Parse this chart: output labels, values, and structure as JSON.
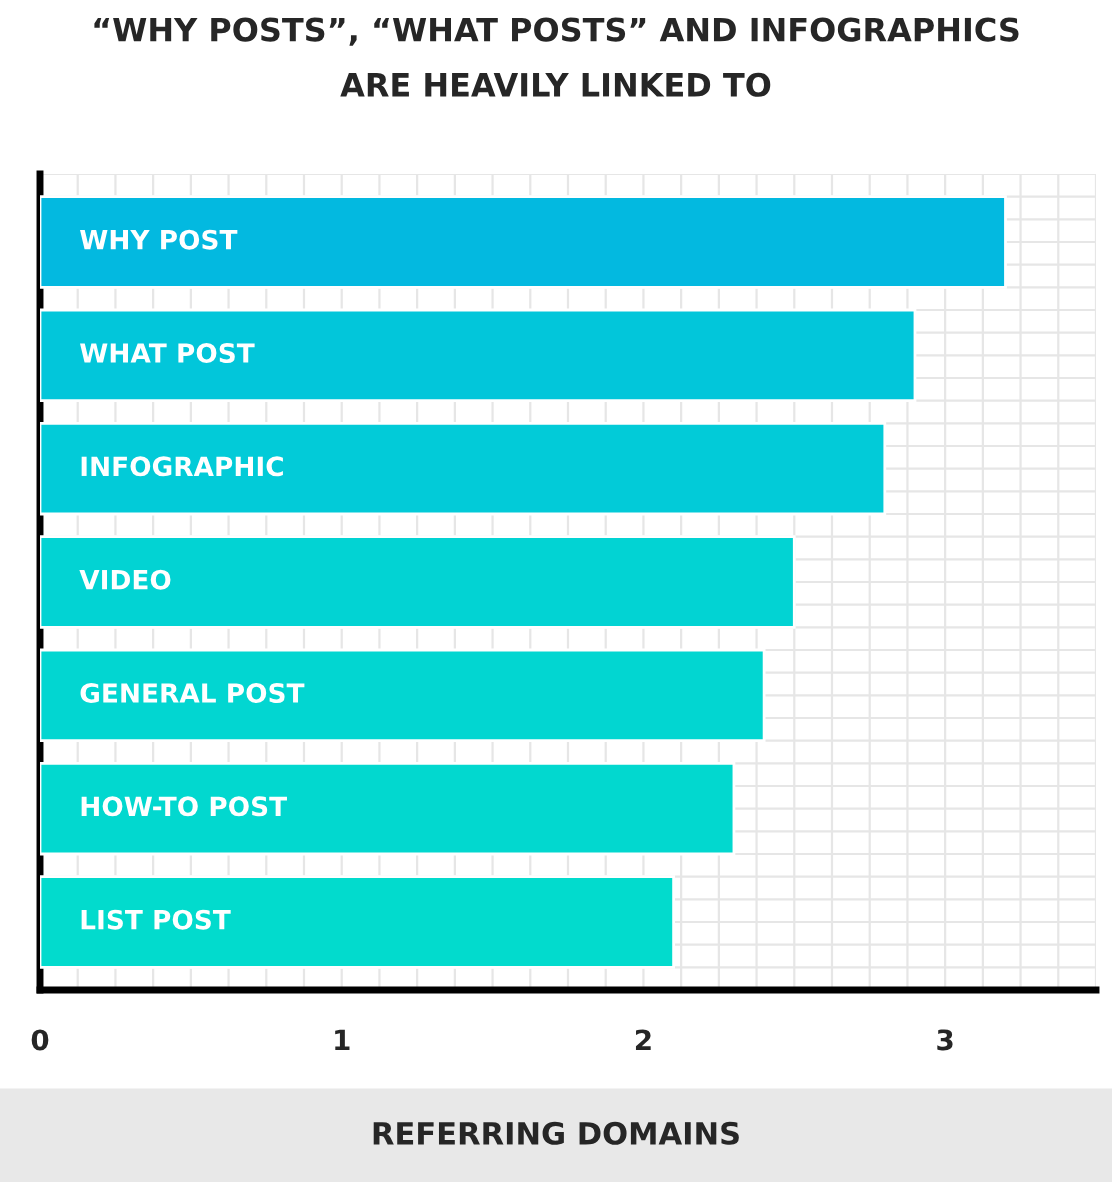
{
  "chart_data": {
    "type": "bar",
    "orientation": "horizontal",
    "title": "“WHY POSTS”, “WHAT POSTS” AND INFOGRAPHICS\nARE HEAVILY LINKED TO",
    "xlabel": "REFERRING DOMAINS",
    "categories": [
      "WHY POST",
      "WHAT POST",
      "INFOGRAPHIC",
      "VIDEO",
      "GENERAL POST",
      "HOW-TO POST",
      "LIST POST"
    ],
    "values": [
      3.2,
      2.9,
      2.8,
      2.5,
      2.4,
      2.3,
      2.1
    ],
    "colors": [
      "#03b9e0",
      "#02c6da",
      "#02cbd8",
      "#02d3d3",
      "#02d6d1",
      "#02d8cf",
      "#02dbcd"
    ],
    "xlim": [
      0,
      3.5
    ],
    "xticks": [
      0,
      1,
      2,
      3
    ],
    "grid": true
  }
}
